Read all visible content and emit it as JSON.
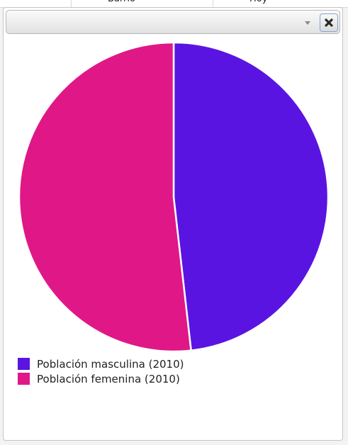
{
  "chart_data": {
    "type": "pie",
    "title": "",
    "slices": [
      {
        "name": "Población masculina (2010)",
        "value": 48.2,
        "color": "#5a14e2"
      },
      {
        "name": "Población femenina (2010)",
        "value": 51.8,
        "color": "#e01787"
      }
    ],
    "legend_position": "bottom-left",
    "start_angle_deg": 0,
    "direction": "clockwise"
  },
  "window": {
    "collapse_icon": "chevron-down-icon",
    "close_icon": "close-icon"
  }
}
